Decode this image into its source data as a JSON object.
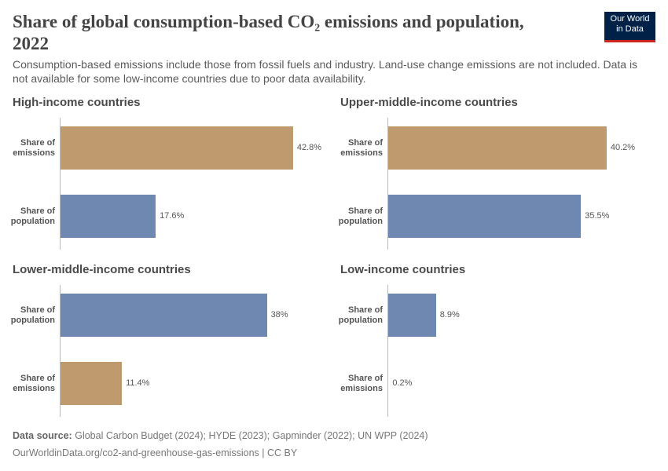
{
  "header": {
    "title": "Share of global consumption-based CO₂ emissions and population, 2022",
    "subtitle": "Consumption-based emissions include those from fossil fuels and industry. Land-use change emissions are not included. Data is not available for some low-income countries due to poor data availability.",
    "logo": [
      "Our World",
      "in Data"
    ]
  },
  "chart_data": [
    {
      "type": "bar",
      "orientation": "horizontal",
      "title": "High-income countries",
      "categories": [
        "Share of emissions",
        "Share of population"
      ],
      "values": [
        42.8,
        17.6
      ],
      "value_labels": [
        "42.8%",
        "17.6%"
      ],
      "colors": [
        "#bf9a6f",
        "#6e88b2"
      ],
      "xlim": [
        0,
        47
      ]
    },
    {
      "type": "bar",
      "orientation": "horizontal",
      "title": "Upper-middle-income countries",
      "categories": [
        "Share of emissions",
        "Share of population"
      ],
      "values": [
        40.2,
        35.5
      ],
      "value_labels": [
        "40.2%",
        "35.5%"
      ],
      "colors": [
        "#bf9a6f",
        "#6e88b2"
      ],
      "xlim": [
        0,
        47
      ]
    },
    {
      "type": "bar",
      "orientation": "horizontal",
      "title": "Lower-middle-income countries",
      "categories": [
        "Share of population",
        "Share of emissions"
      ],
      "values": [
        38,
        11.4
      ],
      "value_labels": [
        "38%",
        "11.4%"
      ],
      "colors": [
        "#6e88b2",
        "#bf9a6f"
      ],
      "xlim": [
        0,
        47
      ]
    },
    {
      "type": "bar",
      "orientation": "horizontal",
      "title": "Low-income countries",
      "categories": [
        "Share of population",
        "Share of emissions"
      ],
      "values": [
        8.9,
        0.2
      ],
      "value_labels": [
        "8.9%",
        "0.2%"
      ],
      "colors": [
        "#6e88b2",
        "#bf9a6f"
      ],
      "xlim": [
        0,
        47
      ]
    }
  ],
  "footer": {
    "source_label": "Data source:",
    "source": "Global Carbon Budget (2024); HYDE (2023); Gapminder (2022); UN WPP (2024)",
    "url": "OurWorldinData.org/co2-and-greenhouse-gas-emissions | CC BY"
  }
}
